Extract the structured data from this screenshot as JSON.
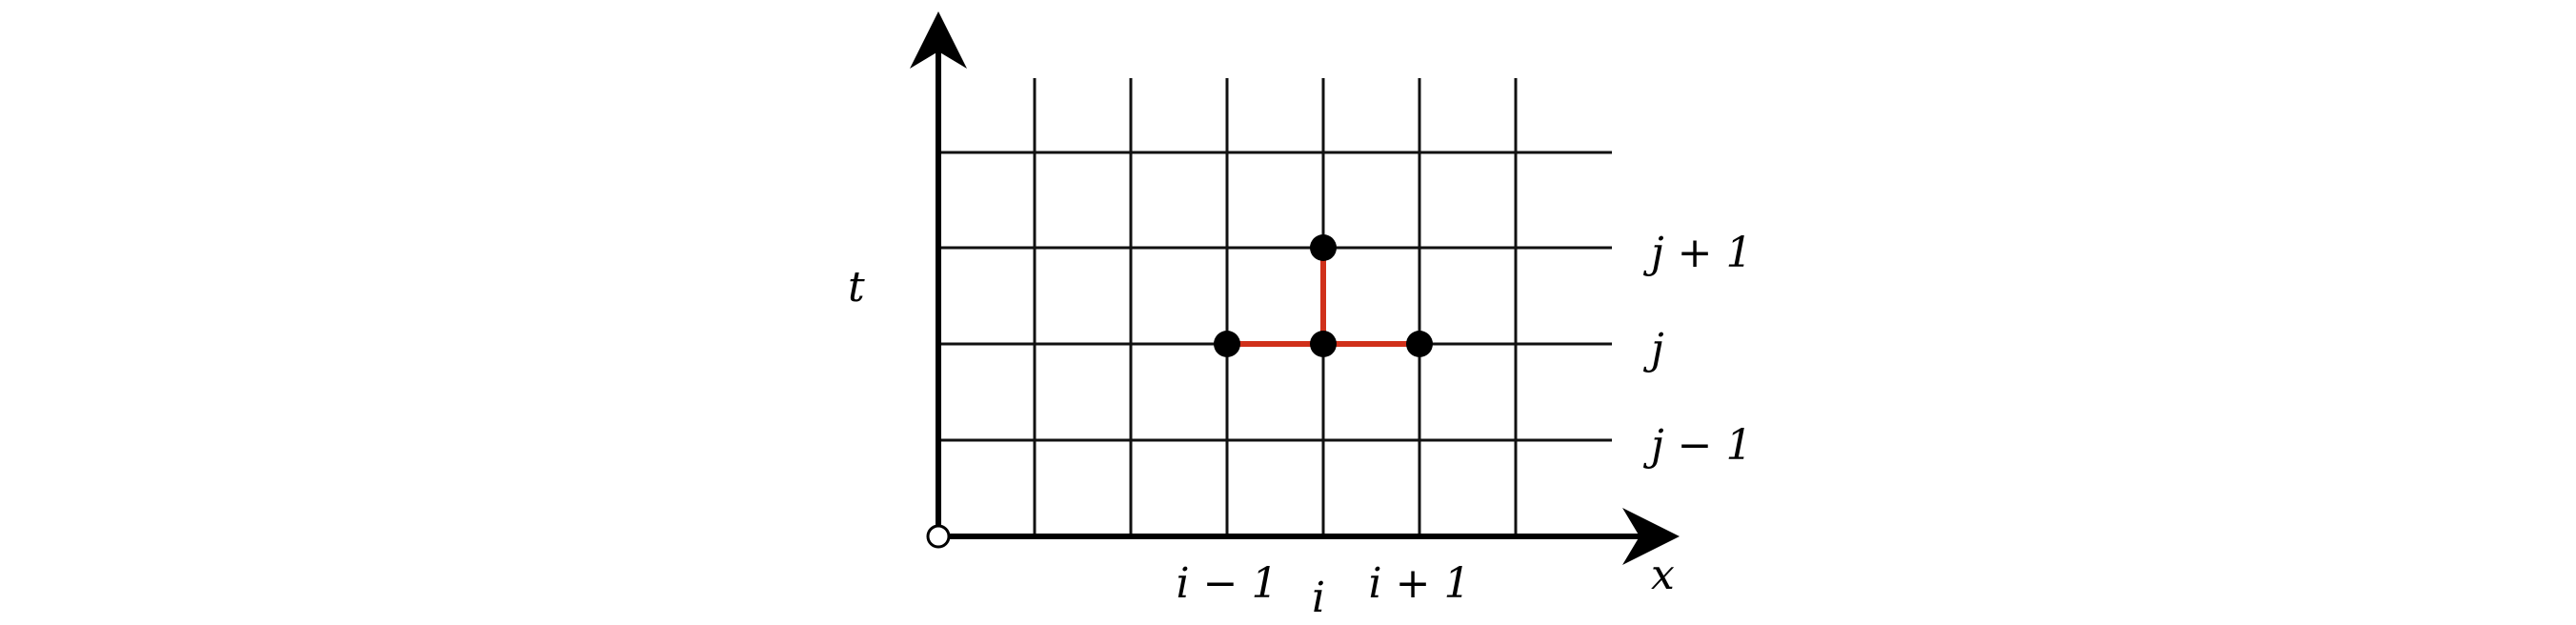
{
  "axes": {
    "vertical_label": "t",
    "horizontal_label": "x"
  },
  "rows": {
    "upper": "j + 1",
    "current": "j",
    "lower": "j − 1"
  },
  "columns": {
    "left": "i − 1",
    "center": "i",
    "right": "i + 1"
  },
  "style": {
    "grid_color": "#111111",
    "stencil_color": "#d0301a",
    "node_color": "#000000"
  }
}
